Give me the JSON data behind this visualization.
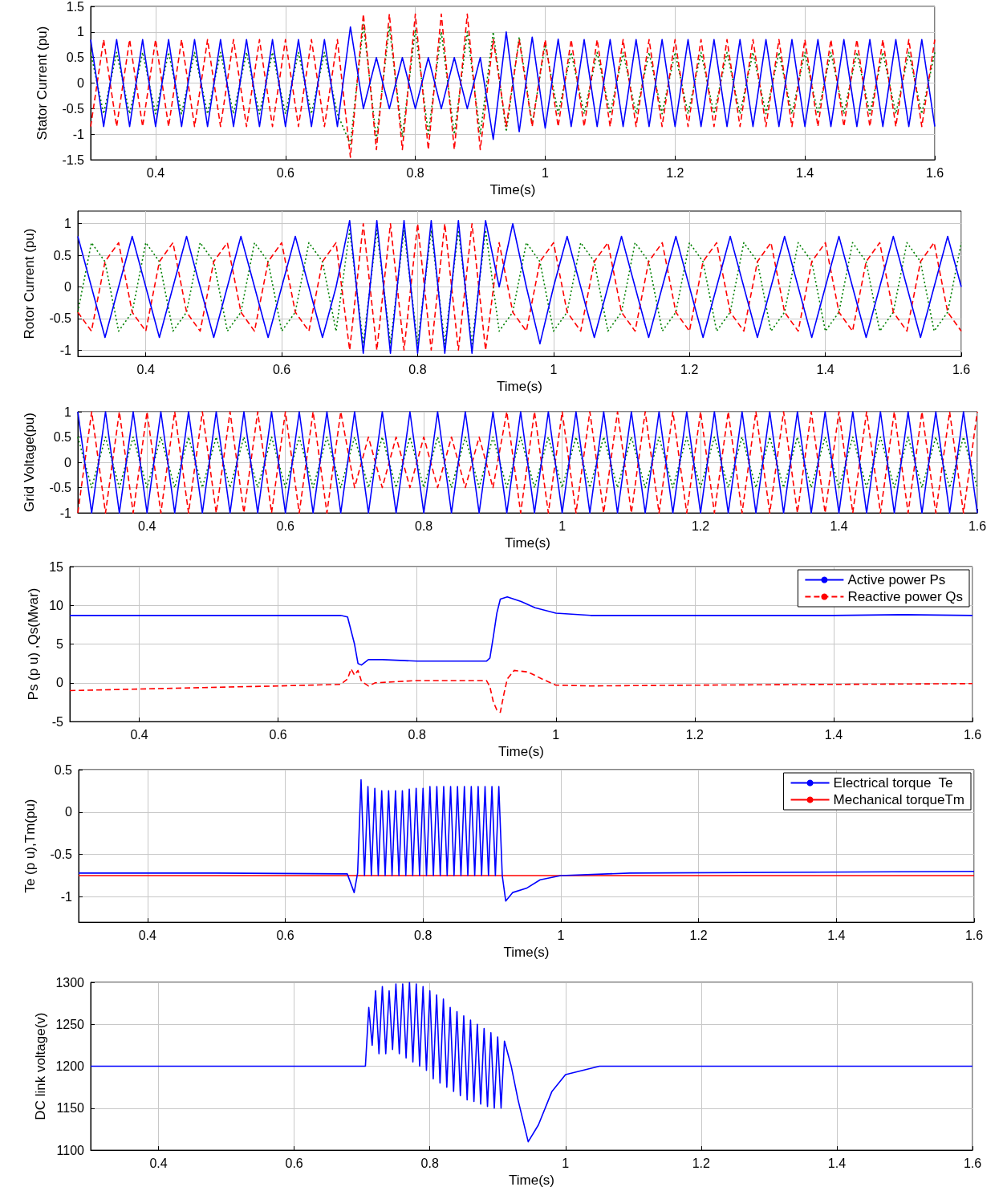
{
  "chart_data": [
    {
      "type": "line",
      "xlabel": "Time(s)",
      "ylabel": "Stator Current (pu)",
      "xlim": [
        0.3,
        1.6
      ],
      "xticks": [
        0.4,
        0.6,
        0.8,
        1,
        1.2,
        1.4,
        1.6
      ],
      "ylim": [
        -1.5,
        1.5
      ],
      "yticks": [
        -1.5,
        -1,
        -0.5,
        0,
        0.5,
        1,
        1.5
      ],
      "grid": true,
      "marker": "none",
      "x": [
        0.3,
        0.32,
        0.34,
        0.36,
        0.38,
        0.4,
        0.42,
        0.44,
        0.46,
        0.48,
        0.5,
        0.52,
        0.54,
        0.56,
        0.58,
        0.6,
        0.62,
        0.64,
        0.66,
        0.68,
        0.7,
        0.72,
        0.74,
        0.76,
        0.78,
        0.8,
        0.82,
        0.84,
        0.86,
        0.88,
        0.9,
        0.92,
        0.94,
        0.96,
        0.98,
        1,
        1.02,
        1.04,
        1.06,
        1.08,
        1.1,
        1.12,
        1.14,
        1.16,
        1.18,
        1.2,
        1.22,
        1.24,
        1.26,
        1.28,
        1.3,
        1.32,
        1.34,
        1.36,
        1.38,
        1.4,
        1.42,
        1.44,
        1.46,
        1.48,
        1.5,
        1.52,
        1.54,
        1.56,
        1.58,
        1.6
      ],
      "series": [
        {
          "color": "#008000",
          "line_style": "dotted",
          "values": [
            0.6,
            -0.6,
            0.6,
            -0.6,
            0.6,
            -0.6,
            0.6,
            -0.6,
            0.6,
            -0.6,
            0.6,
            -0.6,
            0.6,
            -0.6,
            0.6,
            -0.6,
            0.6,
            -0.6,
            0.6,
            -0.6,
            -1.2,
            1.15,
            -1.1,
            1.1,
            -1.05,
            1.05,
            -1,
            1,
            -1,
            1,
            -1,
            1,
            -0.95,
            0.9,
            -0.8,
            0.76,
            -0.6,
            0.6,
            -0.6,
            0.6,
            -0.6,
            0.6,
            -0.6,
            0.6,
            -0.6,
            0.6,
            -0.6,
            0.6,
            -0.6,
            0.6,
            -0.6,
            0.6,
            -0.6,
            0.6,
            -0.6,
            0.6,
            -0.6,
            0.6,
            -0.6,
            0.6,
            -0.6,
            0.6,
            -0.6,
            0.6,
            -0.6,
            0.6
          ]
        },
        {
          "color": "#ff0000",
          "line_style": "dashed",
          "values": [
            -0.85,
            0.85,
            -0.85,
            0.85,
            -0.85,
            0.85,
            -0.85,
            0.85,
            -0.85,
            0.85,
            -0.85,
            0.85,
            -0.85,
            0.85,
            -0.85,
            0.85,
            -0.85,
            0.85,
            -0.85,
            0.85,
            -1.45,
            1.35,
            -1.3,
            1.35,
            -1.3,
            1.35,
            -1.3,
            1.35,
            -1.3,
            1.35,
            -1.3,
            0.85,
            -0.85,
            0.85,
            -0.85,
            0.85,
            -0.85,
            0.85,
            -0.85,
            0.85,
            -0.85,
            0.85,
            -0.85,
            0.85,
            -0.85,
            0.85,
            -0.85,
            0.85,
            -0.85,
            0.85,
            -0.85,
            0.85,
            -0.85,
            0.85,
            -0.85,
            0.85,
            -0.85,
            0.85,
            -0.85,
            0.85,
            -0.85,
            0.85,
            -0.85,
            0.85,
            -0.85,
            0.85
          ]
        },
        {
          "color": "#0000ff",
          "line_style": "solid",
          "values": [
            0.85,
            -0.85,
            0.85,
            -0.85,
            0.85,
            -0.85,
            0.85,
            -0.85,
            0.85,
            -0.85,
            0.85,
            -0.85,
            0.85,
            -0.85,
            0.85,
            -0.85,
            0.85,
            -0.85,
            0.85,
            -0.85,
            1.1,
            -0.5,
            0.5,
            -0.5,
            0.5,
            -0.5,
            0.5,
            -0.5,
            0.5,
            -0.5,
            0.5,
            -1.1,
            1,
            -0.95,
            0.9,
            -0.88,
            0.86,
            -0.85,
            0.85,
            -0.85,
            0.85,
            -0.85,
            0.85,
            -0.85,
            0.85,
            -0.85,
            0.85,
            -0.85,
            0.85,
            -0.85,
            0.85,
            -0.85,
            0.85,
            -0.85,
            0.85,
            -0.85,
            0.85,
            -0.85,
            0.85,
            -0.85,
            0.85,
            -0.85,
            0.85,
            -0.85,
            0.85,
            -0.85
          ]
        }
      ]
    },
    {
      "type": "line",
      "xlabel": "Time(s)",
      "ylabel": "Rotor Current (pu)",
      "xlim": [
        0.3,
        1.6
      ],
      "xticks": [
        0.4,
        0.6,
        0.8,
        1,
        1.2,
        1.4,
        1.6
      ],
      "ylim": [
        -1.1,
        1.2
      ],
      "yticks": [
        -1,
        -0.5,
        0,
        0.5,
        1
      ],
      "grid": true,
      "marker": "none",
      "x": [
        0.3,
        0.32,
        0.34,
        0.36,
        0.38,
        0.4,
        0.42,
        0.44,
        0.46,
        0.48,
        0.5,
        0.52,
        0.54,
        0.56,
        0.58,
        0.6,
        0.62,
        0.64,
        0.66,
        0.68,
        0.7,
        0.72,
        0.74,
        0.76,
        0.78,
        0.8,
        0.82,
        0.84,
        0.86,
        0.88,
        0.9,
        0.92,
        0.94,
        0.96,
        0.98,
        1,
        1.02,
        1.04,
        1.06,
        1.08,
        1.1,
        1.12,
        1.14,
        1.16,
        1.18,
        1.2,
        1.22,
        1.24,
        1.26,
        1.28,
        1.3,
        1.32,
        1.34,
        1.36,
        1.38,
        1.4,
        1.42,
        1.44,
        1.46,
        1.48,
        1.5,
        1.52,
        1.54,
        1.56,
        1.58,
        1.6
      ],
      "series": [
        {
          "color": "#008000",
          "line_style": "dotted",
          "values": [
            -0.4,
            0.7,
            0.4,
            -0.7,
            -0.4,
            0.7,
            0.4,
            -0.7,
            -0.4,
            0.7,
            0.4,
            -0.7,
            -0.4,
            0.7,
            0.4,
            -0.7,
            -0.4,
            0.7,
            0.4,
            -0.7,
            0.9,
            -0.9,
            0.9,
            -0.9,
            0.9,
            -0.9,
            0.9,
            -0.9,
            0.9,
            -0.9,
            0.9,
            -0.7,
            -0.4,
            0.7,
            0.4,
            -0.7,
            -0.4,
            0.7,
            0.4,
            -0.7,
            -0.4,
            0.7,
            0.4,
            -0.7,
            -0.4,
            0.7,
            0.4,
            -0.7,
            -0.4,
            0.7,
            0.4,
            -0.7,
            -0.4,
            0.7,
            0.4,
            -0.7,
            -0.4,
            0.7,
            0.4,
            -0.7,
            -0.4,
            0.7,
            0.4,
            -0.7,
            -0.4,
            0.7
          ]
        },
        {
          "color": "#ff0000",
          "line_style": "dashed",
          "values": [
            -0.4,
            -0.7,
            0.4,
            0.7,
            -0.4,
            -0.7,
            0.4,
            0.7,
            -0.4,
            -0.7,
            0.4,
            0.7,
            -0.4,
            -0.7,
            0.4,
            0.7,
            -0.4,
            -0.7,
            0.4,
            0.7,
            -1,
            1,
            -1,
            1,
            -1,
            1,
            -1,
            1,
            -1,
            1,
            -1,
            0.7,
            -0.4,
            -0.7,
            0.4,
            0.7,
            -0.4,
            -0.7,
            0.4,
            0.7,
            -0.4,
            -0.7,
            0.4,
            0.7,
            -0.4,
            -0.7,
            0.4,
            0.7,
            -0.4,
            -0.7,
            0.4,
            0.7,
            -0.4,
            -0.7,
            0.4,
            0.7,
            -0.4,
            -0.7,
            0.4,
            0.7,
            -0.4,
            -0.7,
            0.4,
            0.7,
            -0.4,
            -0.7
          ]
        },
        {
          "color": "#0000ff",
          "line_style": "solid",
          "values": [
            0.8,
            0,
            -0.8,
            0,
            0.8,
            0,
            -0.8,
            0,
            0.8,
            0,
            -0.8,
            0,
            0.8,
            0,
            -0.8,
            0,
            0.8,
            0,
            -0.8,
            0,
            1.05,
            -1.05,
            1.05,
            -1.05,
            1.05,
            -1.05,
            1.05,
            -1.05,
            1.05,
            -1.05,
            1.05,
            0,
            1,
            0,
            -0.9,
            0,
            0.8,
            0,
            -0.8,
            0,
            0.8,
            0,
            -0.8,
            0,
            0.8,
            0,
            -0.8,
            0,
            0.8,
            0,
            -0.8,
            0,
            0.8,
            0,
            -0.8,
            0,
            0.8,
            0,
            -0.8,
            0,
            0.8,
            0,
            -0.8,
            0,
            0.8,
            0
          ]
        }
      ]
    },
    {
      "type": "line",
      "xlabel": "Time(s)",
      "ylabel": "Grid Voltage(pu)",
      "xlim": [
        0.3,
        1.6
      ],
      "xticks": [
        0.4,
        0.6,
        0.8,
        1,
        1.2,
        1.4,
        1.6
      ],
      "ylim": [
        -1,
        1
      ],
      "yticks": [
        -1,
        -0.5,
        0,
        0.5,
        1
      ],
      "grid": true,
      "marker": "none",
      "x": [
        0.3,
        0.32,
        0.34,
        0.36,
        0.38,
        0.4,
        0.42,
        0.44,
        0.46,
        0.48,
        0.5,
        0.52,
        0.54,
        0.56,
        0.58,
        0.6,
        0.62,
        0.64,
        0.66,
        0.68,
        0.7,
        0.72,
        0.74,
        0.76,
        0.78,
        0.8,
        0.82,
        0.84,
        0.86,
        0.88,
        0.9,
        0.92,
        0.94,
        0.96,
        0.98,
        1,
        1.02,
        1.04,
        1.06,
        1.08,
        1.1,
        1.12,
        1.14,
        1.16,
        1.18,
        1.2,
        1.22,
        1.24,
        1.26,
        1.28,
        1.3,
        1.32,
        1.34,
        1.36,
        1.38,
        1.4,
        1.42,
        1.44,
        1.46,
        1.48,
        1.5,
        1.52,
        1.54,
        1.56,
        1.58,
        1.6
      ],
      "series": [
        {
          "color": "#008000",
          "line_style": "dotted",
          "values": [
            0.5,
            -0.5,
            0.5,
            -0.5,
            0.5,
            -0.5,
            0.5,
            -0.5,
            0.5,
            -0.5,
            0.5,
            -0.5,
            0.5,
            -0.5,
            0.5,
            -0.5,
            0.5,
            -0.5,
            0.5,
            -0.5,
            0.5,
            -0.5,
            0.5,
            -0.5,
            0.5,
            -0.5,
            0.5,
            -0.5,
            0.5,
            -0.5,
            0.5,
            -0.5,
            0.5,
            -0.5,
            0.5,
            -0.5,
            0.5,
            -0.5,
            0.5,
            -0.5,
            0.5,
            -0.5,
            0.5,
            -0.5,
            0.5,
            -0.5,
            0.5,
            -0.5,
            0.5,
            -0.5,
            0.5,
            -0.5,
            0.5,
            -0.5,
            0.5,
            -0.5,
            0.5,
            -0.5,
            0.5,
            -0.5,
            0.5,
            -0.5,
            0.5,
            -0.5,
            0.5,
            -0.5
          ]
        },
        {
          "color": "#ff0000",
          "line_style": "dashed",
          "values": [
            -1,
            1,
            -1,
            1,
            -1,
            1,
            -1,
            1,
            -1,
            1,
            -1,
            1,
            -1,
            1,
            -1,
            1,
            -1,
            1,
            -1,
            1,
            -0.5,
            0.5,
            -0.5,
            0.5,
            -0.5,
            0.5,
            -0.5,
            0.5,
            -0.5,
            0.5,
            -0.5,
            1,
            -1,
            1,
            -1,
            1,
            -1,
            1,
            -1,
            1,
            -1,
            1,
            -1,
            1,
            -1,
            1,
            -1,
            1,
            -1,
            1,
            -1,
            1,
            -1,
            1,
            -1,
            1,
            -1,
            1,
            -1,
            1,
            -1,
            1,
            -1,
            1,
            -1,
            1
          ]
        },
        {
          "color": "#0000ff",
          "line_style": "solid",
          "values": [
            1,
            -1,
            1,
            -1,
            1,
            -1,
            1,
            -1,
            1,
            -1,
            1,
            -1,
            1,
            -1,
            1,
            -1,
            1,
            -1,
            1,
            -1,
            1,
            -1,
            1,
            -1,
            1,
            -1,
            1,
            -1,
            1,
            -1,
            1,
            -1,
            1,
            -1,
            1,
            -1,
            1,
            -1,
            1,
            -1,
            1,
            -1,
            1,
            -1,
            1,
            -1,
            1,
            -1,
            1,
            -1,
            1,
            -1,
            1,
            -1,
            1,
            -1,
            1,
            -1,
            1,
            -1,
            1,
            -1,
            1,
            -1,
            1,
            -1
          ]
        }
      ]
    },
    {
      "type": "line",
      "xlabel": "Time(s)",
      "ylabel": "Ps (p u) ,Qs(Mvar)",
      "xlim": [
        0.3,
        1.6
      ],
      "xticks": [
        0.4,
        0.6,
        0.8,
        1,
        1.2,
        1.4,
        1.6
      ],
      "ylim": [
        -5,
        15
      ],
      "yticks": [
        -5,
        0,
        5,
        10,
        15
      ],
      "grid": true,
      "marker": "none",
      "legend": "top right",
      "series": [
        {
          "name": "Active power Ps",
          "color": "#0000ff",
          "line_style": "solid",
          "x": [
            0.3,
            0.5,
            0.69,
            0.7,
            0.71,
            0.715,
            0.72,
            0.73,
            0.75,
            0.8,
            0.9,
            0.905,
            0.91,
            0.915,
            0.92,
            0.93,
            0.95,
            0.97,
            1,
            1.05,
            1.2,
            1.4,
            1.5,
            1.6
          ],
          "values": [
            8.7,
            8.7,
            8.7,
            8.5,
            5,
            2.5,
            2.3,
            3,
            3,
            2.8,
            2.8,
            3.2,
            6,
            9,
            10.8,
            11.1,
            10.5,
            9.7,
            9,
            8.7,
            8.7,
            8.7,
            8.8,
            8.7
          ]
        },
        {
          "name": "Reactive power Qs",
          "color": "#ff0000",
          "line_style": "dashed",
          "x": [
            0.3,
            0.4,
            0.5,
            0.6,
            0.69,
            0.7,
            0.705,
            0.71,
            0.715,
            0.72,
            0.73,
            0.74,
            0.8,
            0.9,
            0.905,
            0.91,
            0.915,
            0.92,
            0.925,
            0.93,
            0.94,
            0.96,
            0.98,
            1,
            1.05,
            1.2,
            1.4,
            1.6
          ],
          "values": [
            -1,
            -0.8,
            -0.6,
            -0.4,
            -0.2,
            0.5,
            1.8,
            1,
            1.6,
            0.2,
            -0.4,
            0,
            0.3,
            0.3,
            -0.5,
            -2.5,
            -3.5,
            -3.8,
            -1.5,
            0.5,
            1.6,
            1.4,
            0.5,
            -0.3,
            -0.4,
            -0.3,
            -0.2,
            -0.1
          ]
        }
      ]
    },
    {
      "type": "line",
      "xlabel": "Time(s)",
      "ylabel": "Te (p u),Tm(pu)",
      "xlim": [
        0.3,
        1.6
      ],
      "xticks": [
        0.4,
        0.6,
        0.8,
        1,
        1.2,
        1.4,
        1.6
      ],
      "ylim": [
        -1.3,
        0.5
      ],
      "yticks": [
        -1,
        -0.5,
        0,
        0.5
      ],
      "grid": true,
      "marker": "none",
      "legend": "top right",
      "series": [
        {
          "name": "Electrical torque  Te",
          "color": "#0000ff",
          "line_style": "solid",
          "x": [
            0.3,
            0.5,
            0.69,
            0.7,
            0.705,
            0.71,
            0.715,
            0.72,
            0.725,
            0.73,
            0.735,
            0.74,
            0.745,
            0.75,
            0.755,
            0.76,
            0.765,
            0.77,
            0.775,
            0.78,
            0.785,
            0.79,
            0.795,
            0.8,
            0.805,
            0.81,
            0.815,
            0.82,
            0.825,
            0.83,
            0.835,
            0.84,
            0.845,
            0.85,
            0.855,
            0.86,
            0.865,
            0.87,
            0.875,
            0.88,
            0.885,
            0.89,
            0.895,
            0.9,
            0.905,
            0.91,
            0.915,
            0.92,
            0.93,
            0.95,
            0.97,
            1,
            1.1,
            1.6
          ],
          "values": [
            -0.72,
            -0.72,
            -0.73,
            -0.95,
            -0.72,
            0.38,
            -0.75,
            0.3,
            -0.75,
            0.28,
            -0.75,
            0.25,
            -0.75,
            0.25,
            -0.75,
            0.25,
            -0.75,
            0.25,
            -0.75,
            0.27,
            -0.75,
            0.28,
            -0.75,
            0.28,
            -0.75,
            0.3,
            -0.75,
            0.3,
            -0.75,
            0.3,
            -0.75,
            0.3,
            -0.75,
            0.3,
            -0.75,
            0.3,
            -0.75,
            0.3,
            -0.75,
            0.3,
            -0.75,
            0.3,
            -0.75,
            0.3,
            -0.75,
            0.3,
            -0.75,
            -1.05,
            -0.95,
            -0.9,
            -0.8,
            -0.75,
            -0.72,
            -0.7
          ]
        },
        {
          "name": "Mechanical torqueTm",
          "color": "#ff0000",
          "line_style": "solid",
          "x": [
            0.3,
            1.6
          ],
          "values": [
            -0.75,
            -0.75
          ]
        }
      ]
    },
    {
      "type": "line",
      "ylabel": "DC link voltage(v)",
      "xlabel": "Time(s)",
      "xlim": [
        0.3,
        1.6
      ],
      "xticks": [
        0.4,
        0.6,
        0.8,
        1,
        1.2,
        1.4,
        1.6
      ],
      "ylim": [
        1100,
        1300
      ],
      "yticks": [
        1100,
        1150,
        1200,
        1250,
        1300
      ],
      "grid": true,
      "marker": "none",
      "series": [
        {
          "color": "#0000ff",
          "line_style": "solid",
          "x": [
            0.3,
            0.5,
            0.705,
            0.71,
            0.715,
            0.72,
            0.725,
            0.73,
            0.735,
            0.74,
            0.745,
            0.75,
            0.755,
            0.76,
            0.765,
            0.77,
            0.775,
            0.78,
            0.785,
            0.79,
            0.795,
            0.8,
            0.805,
            0.81,
            0.815,
            0.82,
            0.825,
            0.83,
            0.835,
            0.84,
            0.845,
            0.85,
            0.855,
            0.86,
            0.865,
            0.87,
            0.875,
            0.88,
            0.885,
            0.89,
            0.895,
            0.9,
            0.905,
            0.91,
            0.92,
            0.93,
            0.945,
            0.96,
            0.98,
            1,
            1.05,
            1.6
          ],
          "values": [
            1200,
            1200,
            1200,
            1270,
            1225,
            1290,
            1215,
            1295,
            1215,
            1290,
            1220,
            1298,
            1215,
            1298,
            1210,
            1300,
            1205,
            1298,
            1200,
            1295,
            1195,
            1290,
            1185,
            1285,
            1180,
            1280,
            1175,
            1270,
            1170,
            1265,
            1165,
            1260,
            1160,
            1255,
            1158,
            1250,
            1155,
            1245,
            1152,
            1240,
            1150,
            1235,
            1150,
            1230,
            1200,
            1160,
            1110,
            1130,
            1170,
            1190,
            1200,
            1200
          ]
        }
      ]
    }
  ]
}
